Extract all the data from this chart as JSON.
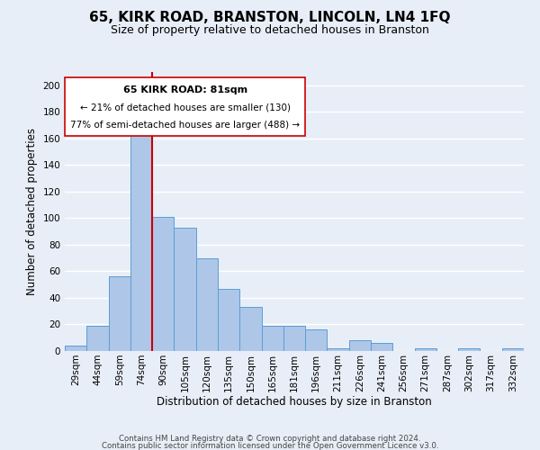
{
  "title": "65, KIRK ROAD, BRANSTON, LINCOLN, LN4 1FQ",
  "subtitle": "Size of property relative to detached houses in Branston",
  "xlabel": "Distribution of detached houses by size in Branston",
  "ylabel": "Number of detached properties",
  "bin_labels": [
    "29sqm",
    "44sqm",
    "59sqm",
    "74sqm",
    "90sqm",
    "105sqm",
    "120sqm",
    "135sqm",
    "150sqm",
    "165sqm",
    "181sqm",
    "196sqm",
    "211sqm",
    "226sqm",
    "241sqm",
    "256sqm",
    "271sqm",
    "287sqm",
    "302sqm",
    "317sqm",
    "332sqm"
  ],
  "bar_heights": [
    4,
    19,
    56,
    165,
    101,
    93,
    70,
    47,
    33,
    19,
    19,
    16,
    2,
    8,
    6,
    0,
    2,
    0,
    2,
    0,
    2
  ],
  "bar_color": "#aec6e8",
  "bar_edge_color": "#5a9fd4",
  "ylim": [
    0,
    210
  ],
  "yticks": [
    0,
    20,
    40,
    60,
    80,
    100,
    120,
    140,
    160,
    180,
    200
  ],
  "vline_color": "#cc0000",
  "ann_line1": "65 KIRK ROAD: 81sqm",
  "ann_line2": "← 21% of detached houses are smaller (130)",
  "ann_line3": "77% of semi-detached houses are larger (488) →",
  "footer_line1": "Contains HM Land Registry data © Crown copyright and database right 2024.",
  "footer_line2": "Contains public sector information licensed under the Open Government Licence v3.0.",
  "background_color": "#e8eef7",
  "plot_bg_color": "#e8eef7",
  "grid_color": "#ffffff"
}
